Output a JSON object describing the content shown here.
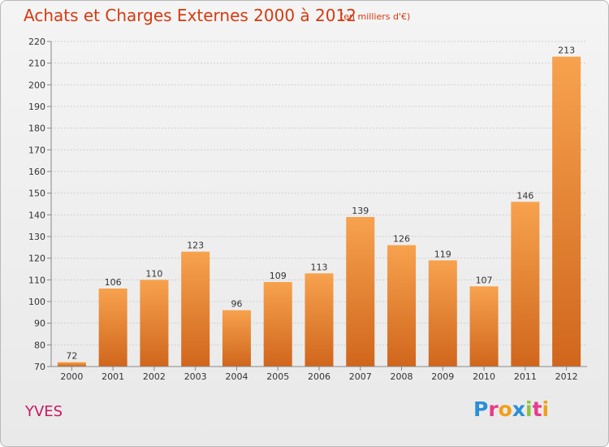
{
  "header": {
    "title": "Achats et Charges Externes 2000 à 2012",
    "unit": "(en milliers d'€)"
  },
  "footer": {
    "town": "YVES",
    "logo_text": "Proxiti",
    "logo_letters": [
      {
        "ch": "P",
        "color": "#2a8fd8"
      },
      {
        "ch": "r",
        "color": "#e83a8c"
      },
      {
        "ch": "o",
        "color": "#f0a018"
      },
      {
        "ch": "x",
        "color": "#2a8fd8"
      },
      {
        "ch": "i",
        "color": "#8cc43c"
      },
      {
        "ch": "t",
        "color": "#e83a8c"
      },
      {
        "ch": "i",
        "color": "#f0a018"
      }
    ]
  },
  "chart_data": {
    "type": "bar",
    "title": "Achats et Charges Externes 2000 à 2012",
    "subtitle": "(en milliers d'€)",
    "xlabel": "",
    "ylabel": "",
    "categories": [
      "2000",
      "2001",
      "2002",
      "2003",
      "2004",
      "2005",
      "2006",
      "2007",
      "2008",
      "2009",
      "2010",
      "2011",
      "2012"
    ],
    "values": [
      72,
      106,
      110,
      123,
      96,
      109,
      113,
      139,
      126,
      119,
      107,
      146,
      213
    ],
    "ylim": [
      70,
      220
    ],
    "yticks": [
      70,
      80,
      90,
      100,
      110,
      120,
      130,
      140,
      150,
      160,
      170,
      180,
      190,
      200,
      210,
      220
    ],
    "grid": true,
    "data_labels": true,
    "colors": {
      "bar_top": "#f7a24e",
      "bar_bottom": "#d0661c",
      "grid": "#d0d0d0",
      "axis": "#888888"
    }
  }
}
